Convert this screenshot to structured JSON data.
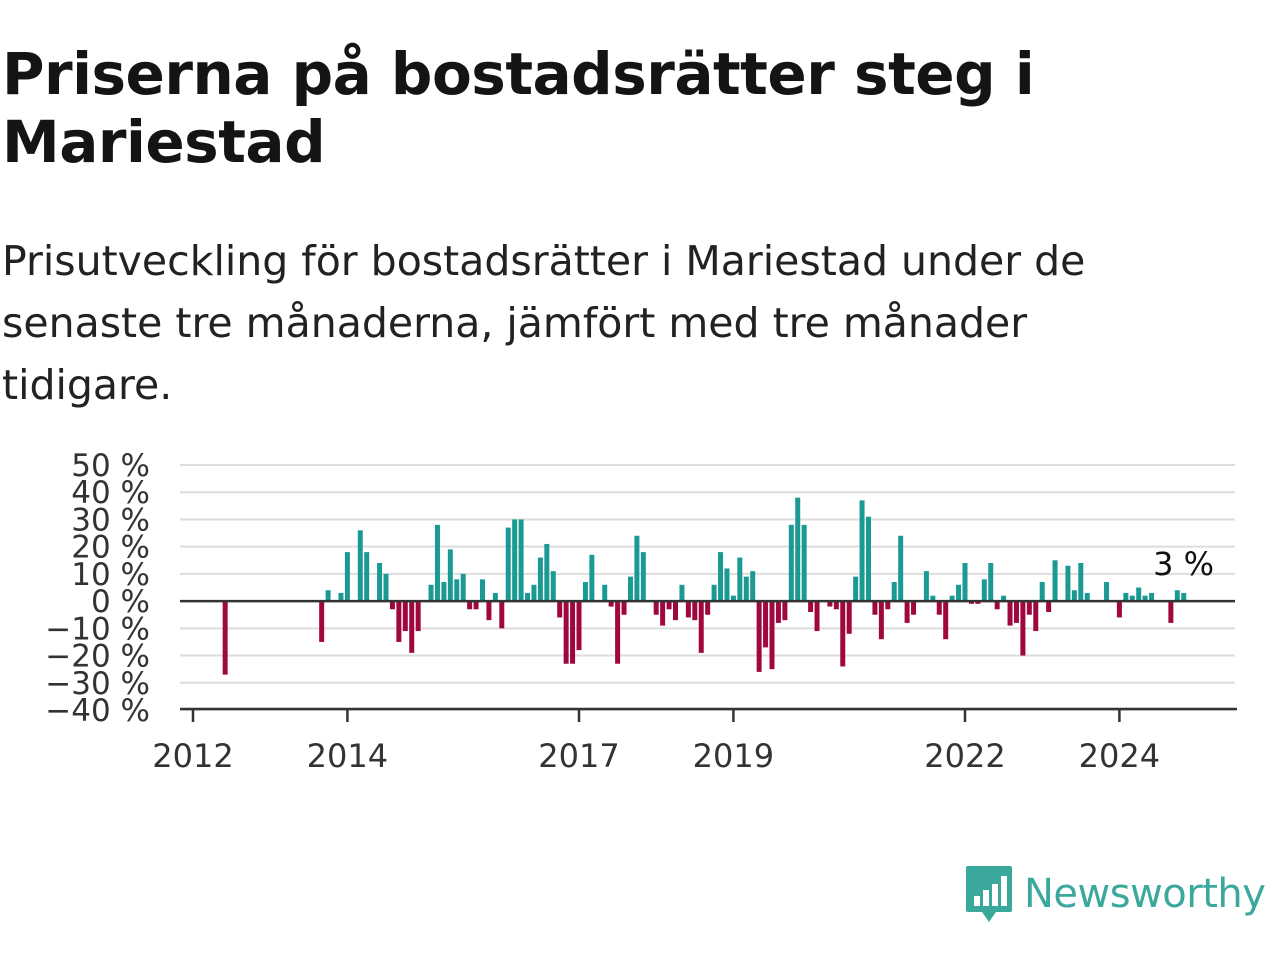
{
  "header": {
    "title": "Priserna på bostadsrätter steg i Mariestad",
    "subtitle": "Prisutveckling för bostadsrätter i Mariestad under de senaste tre månaderna, jämfört med tre månader tidigare."
  },
  "brand": {
    "name": "Newsworthy",
    "icon": "newsworthy-logo-icon",
    "color": "#3aa89b"
  },
  "colors": {
    "positive": "#1a9a93",
    "negative": "#a0073f",
    "grid": "#dddddd",
    "zero_line": "#333333"
  },
  "chart_data": {
    "type": "bar",
    "title": "",
    "xlabel": "",
    "ylabel": "",
    "ylim": [
      -40,
      50
    ],
    "y_ticks": [
      "50 %",
      "40 %",
      "30 %",
      "20 %",
      "10 %",
      "0 %",
      "−10 %",
      "−20 %",
      "−30 %",
      "−40 %"
    ],
    "y_tick_values": [
      50,
      40,
      30,
      20,
      10,
      0,
      -10,
      -20,
      -30,
      -40
    ],
    "x_ticks": [
      "2012",
      "2014",
      "2017",
      "2019",
      "2022",
      "2024"
    ],
    "x_tick_dates": [
      "2012-01",
      "2014-01",
      "2017-01",
      "2019-01",
      "2022-01",
      "2024-01"
    ],
    "grid": true,
    "annotation": {
      "label": "3 %",
      "date": "2025-01",
      "value": 3
    },
    "series": [
      {
        "values": [
          {
            "date": "2012-06",
            "value": -27
          },
          {
            "date": "2013-09",
            "value": -15
          },
          {
            "date": "2013-10",
            "value": 4
          },
          {
            "date": "2013-12",
            "value": 3
          },
          {
            "date": "2014-01",
            "value": 18
          },
          {
            "date": "2014-03",
            "value": 26
          },
          {
            "date": "2014-04",
            "value": 18
          },
          {
            "date": "2014-06",
            "value": 14
          },
          {
            "date": "2014-07",
            "value": 10
          },
          {
            "date": "2014-08",
            "value": -3
          },
          {
            "date": "2014-09",
            "value": -15
          },
          {
            "date": "2014-10",
            "value": -11
          },
          {
            "date": "2014-11",
            "value": -19
          },
          {
            "date": "2014-12",
            "value": -11
          },
          {
            "date": "2015-02",
            "value": 6
          },
          {
            "date": "2015-03",
            "value": 28
          },
          {
            "date": "2015-04",
            "value": 7
          },
          {
            "date": "2015-05",
            "value": 19
          },
          {
            "date": "2015-06",
            "value": 8
          },
          {
            "date": "2015-07",
            "value": 10
          },
          {
            "date": "2015-08",
            "value": -3
          },
          {
            "date": "2015-09",
            "value": -3
          },
          {
            "date": "2015-10",
            "value": 8
          },
          {
            "date": "2015-11",
            "value": -7
          },
          {
            "date": "2015-12",
            "value": 3
          },
          {
            "date": "2016-01",
            "value": -10
          },
          {
            "date": "2016-02",
            "value": 27
          },
          {
            "date": "2016-03",
            "value": 30
          },
          {
            "date": "2016-04",
            "value": 30
          },
          {
            "date": "2016-05",
            "value": 3
          },
          {
            "date": "2016-06",
            "value": 6
          },
          {
            "date": "2016-07",
            "value": 16
          },
          {
            "date": "2016-08",
            "value": 21
          },
          {
            "date": "2016-09",
            "value": 11
          },
          {
            "date": "2016-10",
            "value": -6
          },
          {
            "date": "2016-11",
            "value": -23
          },
          {
            "date": "2016-12",
            "value": -23
          },
          {
            "date": "2017-01",
            "value": -18
          },
          {
            "date": "2017-02",
            "value": 7
          },
          {
            "date": "2017-03",
            "value": 17
          },
          {
            "date": "2017-05",
            "value": 6
          },
          {
            "date": "2017-06",
            "value": -2
          },
          {
            "date": "2017-07",
            "value": -23
          },
          {
            "date": "2017-08",
            "value": -5
          },
          {
            "date": "2017-09",
            "value": 9
          },
          {
            "date": "2017-10",
            "value": 24
          },
          {
            "date": "2017-11",
            "value": 18
          },
          {
            "date": "2018-01",
            "value": -5
          },
          {
            "date": "2018-02",
            "value": -9
          },
          {
            "date": "2018-03",
            "value": -3
          },
          {
            "date": "2018-04",
            "value": -7
          },
          {
            "date": "2018-05",
            "value": 6
          },
          {
            "date": "2018-06",
            "value": -6
          },
          {
            "date": "2018-07",
            "value": -7
          },
          {
            "date": "2018-08",
            "value": -19
          },
          {
            "date": "2018-09",
            "value": -5
          },
          {
            "date": "2018-10",
            "value": 6
          },
          {
            "date": "2018-11",
            "value": 18
          },
          {
            "date": "2018-12",
            "value": 12
          },
          {
            "date": "2019-01",
            "value": 2
          },
          {
            "date": "2019-02",
            "value": 16
          },
          {
            "date": "2019-03",
            "value": 9
          },
          {
            "date": "2019-04",
            "value": 11
          },
          {
            "date": "2019-05",
            "value": -26
          },
          {
            "date": "2019-06",
            "value": -17
          },
          {
            "date": "2019-07",
            "value": -25
          },
          {
            "date": "2019-08",
            "value": -8
          },
          {
            "date": "2019-09",
            "value": -7
          },
          {
            "date": "2019-10",
            "value": 28
          },
          {
            "date": "2019-11",
            "value": 38
          },
          {
            "date": "2019-12",
            "value": 28
          },
          {
            "date": "2020-01",
            "value": -4
          },
          {
            "date": "2020-02",
            "value": -11
          },
          {
            "date": "2020-04",
            "value": -2
          },
          {
            "date": "2020-05",
            "value": -3
          },
          {
            "date": "2020-06",
            "value": -24
          },
          {
            "date": "2020-07",
            "value": -12
          },
          {
            "date": "2020-08",
            "value": 9
          },
          {
            "date": "2020-09",
            "value": 37
          },
          {
            "date": "2020-10",
            "value": 31
          },
          {
            "date": "2020-11",
            "value": -5
          },
          {
            "date": "2020-12",
            "value": -14
          },
          {
            "date": "2021-01",
            "value": -3
          },
          {
            "date": "2021-02",
            "value": 7
          },
          {
            "date": "2021-03",
            "value": 24
          },
          {
            "date": "2021-04",
            "value": -8
          },
          {
            "date": "2021-05",
            "value": -5
          },
          {
            "date": "2021-07",
            "value": 11
          },
          {
            "date": "2021-08",
            "value": 2
          },
          {
            "date": "2021-09",
            "value": -5
          },
          {
            "date": "2021-10",
            "value": -14
          },
          {
            "date": "2021-11",
            "value": 2
          },
          {
            "date": "2021-12",
            "value": 6
          },
          {
            "date": "2022-01",
            "value": 14
          },
          {
            "date": "2022-02",
            "value": -1
          },
          {
            "date": "2022-03",
            "value": -1
          },
          {
            "date": "2022-04",
            "value": 8
          },
          {
            "date": "2022-05",
            "value": 14
          },
          {
            "date": "2022-06",
            "value": -3
          },
          {
            "date": "2022-07",
            "value": 2
          },
          {
            "date": "2022-08",
            "value": -9
          },
          {
            "date": "2022-09",
            "value": -8
          },
          {
            "date": "2022-10",
            "value": -20
          },
          {
            "date": "2022-11",
            "value": -5
          },
          {
            "date": "2022-12",
            "value": -11
          },
          {
            "date": "2023-01",
            "value": 7
          },
          {
            "date": "2023-02",
            "value": -4
          },
          {
            "date": "2023-03",
            "value": 15
          },
          {
            "date": "2023-05",
            "value": 13
          },
          {
            "date": "2023-06",
            "value": 4
          },
          {
            "date": "2023-07",
            "value": 14
          },
          {
            "date": "2023-08",
            "value": 3
          },
          {
            "date": "2023-11",
            "value": 7
          },
          {
            "date": "2024-01",
            "value": -6
          },
          {
            "date": "2024-02",
            "value": 3
          },
          {
            "date": "2024-03",
            "value": 2
          },
          {
            "date": "2024-04",
            "value": 5
          },
          {
            "date": "2024-05",
            "value": 2
          },
          {
            "date": "2024-06",
            "value": 3
          },
          {
            "date": "2024-09",
            "value": -8
          },
          {
            "date": "2024-10",
            "value": 4
          },
          {
            "date": "2024-11",
            "value": 3
          }
        ]
      }
    ]
  }
}
